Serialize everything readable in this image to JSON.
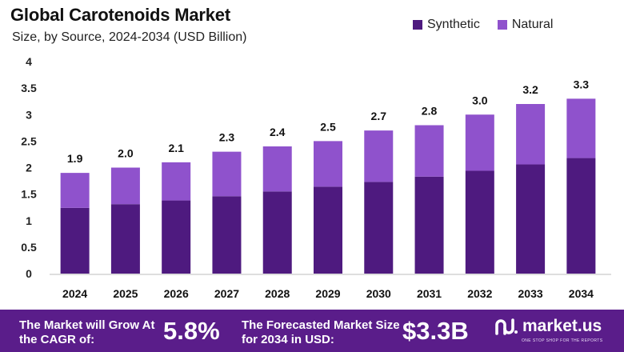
{
  "title": "Global Carotenoids Market",
  "subtitle": "Size, by Source, 2024-2034 (USD Billion)",
  "legend": {
    "synthetic": "Synthetic",
    "natural": "Natural"
  },
  "colors": {
    "synthetic": "#4e1a7f",
    "natural": "#8f52cc",
    "footer_bg": "#5a1d8a"
  },
  "chart_data": {
    "type": "bar",
    "stacked": true,
    "categories": [
      "2024",
      "2025",
      "2026",
      "2027",
      "2028",
      "2029",
      "2030",
      "2031",
      "2032",
      "2033",
      "2034"
    ],
    "series": [
      {
        "name": "Synthetic",
        "values": [
          1.24,
          1.31,
          1.38,
          1.46,
          1.55,
          1.64,
          1.73,
          1.83,
          1.94,
          2.06,
          2.18
        ]
      },
      {
        "name": "Natural",
        "values": [
          0.66,
          0.69,
          0.72,
          0.84,
          0.85,
          0.86,
          0.97,
          0.97,
          1.06,
          1.14,
          1.12
        ]
      }
    ],
    "totals": [
      "1.9",
      "2.0",
      "2.1",
      "2.3",
      "2.4",
      "2.5",
      "2.7",
      "2.8",
      "3.0",
      "3.2",
      "3.3"
    ],
    "yticks": [
      "0",
      "0.5",
      "1",
      "1.5",
      "2",
      "2.5",
      "3",
      "3.5",
      "4"
    ],
    "ylim": [
      0,
      4
    ],
    "title": "Global Carotenoids Market",
    "xlabel": "",
    "ylabel": "",
    "grid": false,
    "legend_position": "top-right"
  },
  "footer": {
    "cagr_label": "The Market will Grow At the CAGR of:",
    "cagr_value": "5.8%",
    "forecast_label": "The Forecasted Market Size for 2034 in USD:",
    "forecast_value": "$3.3B",
    "brand": "market.us",
    "tagline": "ONE STOP SHOP FOR THE REPORTS"
  }
}
